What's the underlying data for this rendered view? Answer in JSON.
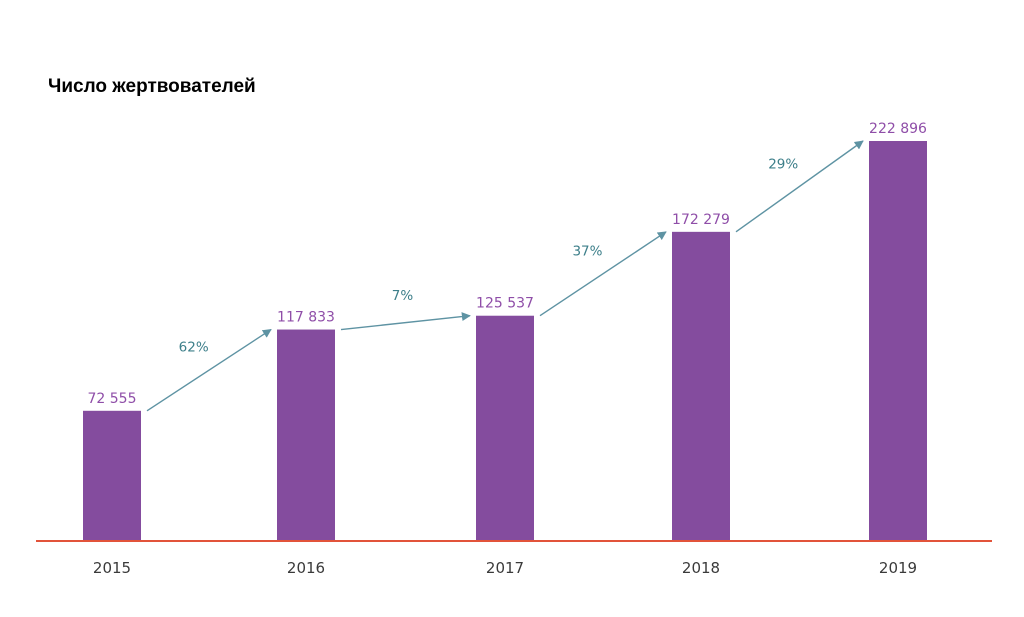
{
  "chart_data": {
    "type": "bar",
    "title": "Число жертвователей",
    "categories": [
      "2015",
      "2016",
      "2017",
      "2018",
      "2019"
    ],
    "values": [
      72555,
      117833,
      125537,
      172279,
      222896
    ],
    "value_labels": [
      "72 555",
      "117 833",
      "125 537",
      "172 279",
      "222 896"
    ],
    "growth_labels": [
      "62%",
      "7%",
      "37%",
      "29%"
    ],
    "ylim": [
      0,
      222896
    ],
    "grid": false,
    "colors": {
      "bar": "#844c9e",
      "value_label": "#8f4ea8",
      "arrow": "#5e93a3",
      "growth_label": "#3d7f8a",
      "axis": "#e2533a",
      "year_label": "#3a3a3a"
    }
  }
}
